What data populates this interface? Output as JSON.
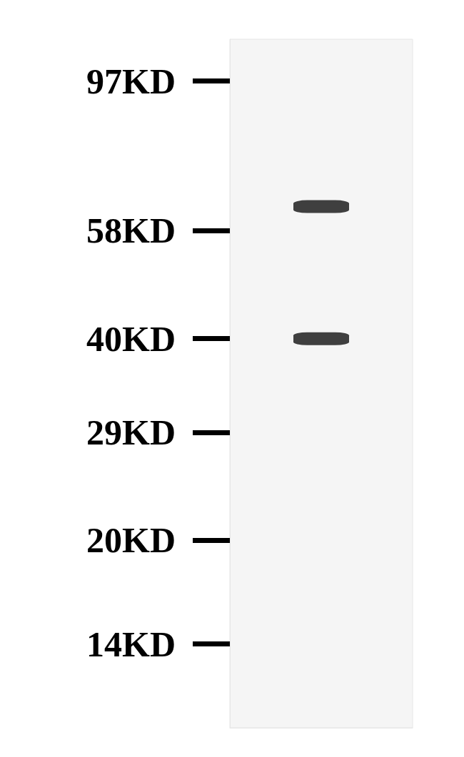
{
  "chart_data": {
    "type": "scatter",
    "x": [
      1,
      1
    ],
    "values": [
      63,
      40
    ],
    "xlim": [
      0,
      2
    ],
    "ylim": [
      10.5,
      112
    ],
    "yticks": [
      {
        "value": 97,
        "label": "97KD"
      },
      {
        "value": 58,
        "label": "58KD"
      },
      {
        "value": 40,
        "label": "40KD"
      },
      {
        "value": 29,
        "label": "29KD"
      },
      {
        "value": 20,
        "label": "20KD"
      },
      {
        "value": 14,
        "label": "14KD"
      }
    ],
    "log": "y",
    "grid": false,
    "tick_labels": "y",
    "color": "#111111",
    "marker": "roundRect"
  }
}
